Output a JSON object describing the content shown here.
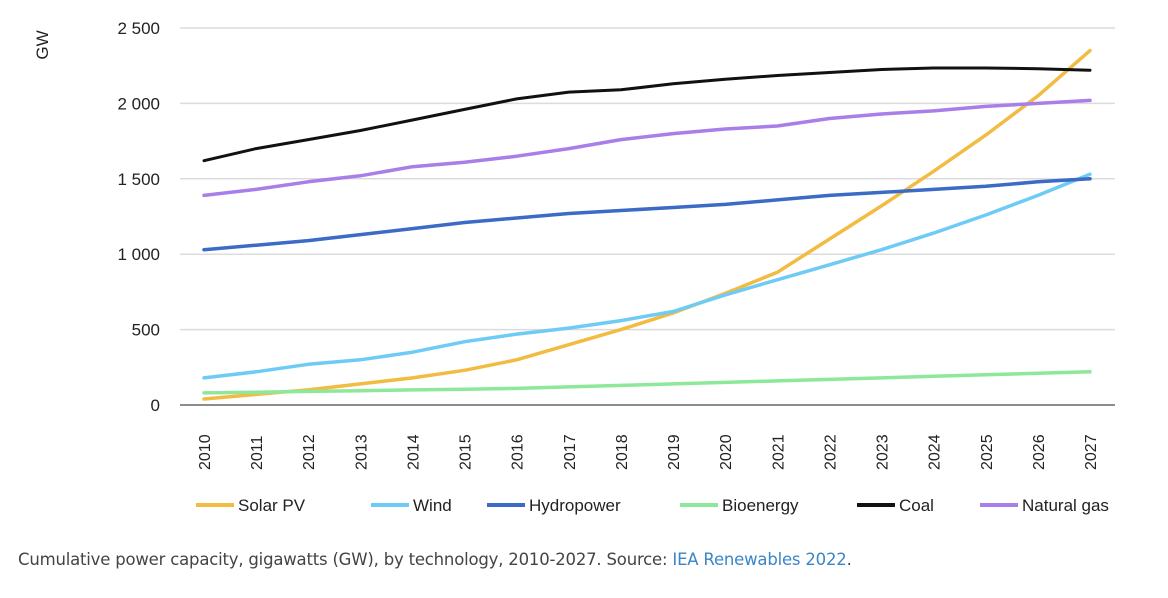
{
  "chart_data": {
    "type": "line",
    "title": "",
    "ylabel": "GW",
    "xlabel": "",
    "ylim": [
      0,
      2500
    ],
    "yticks": [
      0,
      500,
      1000,
      1500,
      2000,
      2500
    ],
    "ytick_labels": [
      "0",
      "500",
      "1 000",
      "1 500",
      "2 000",
      "2 500"
    ],
    "grid": true,
    "legend_placement": "bottom",
    "x": [
      "2010",
      "2011",
      "2012",
      "2013",
      "2014",
      "2015",
      "2016",
      "2017",
      "2018",
      "2019",
      "2020",
      "2021",
      "2022",
      "2023",
      "2024",
      "2025",
      "2026",
      "2027"
    ],
    "series": [
      {
        "name": "Solar PV",
        "color": "#f2bb41",
        "values": [
          40,
          70,
          100,
          140,
          180,
          230,
          300,
          400,
          500,
          610,
          740,
          880,
          1100,
          1320,
          1550,
          1790,
          2050,
          2350
        ]
      },
      {
        "name": "Wind",
        "color": "#6ecbf5",
        "values": [
          180,
          220,
          270,
          300,
          350,
          420,
          470,
          510,
          560,
          620,
          730,
          830,
          930,
          1030,
          1140,
          1260,
          1390,
          1530
        ]
      },
      {
        "name": "Hydropower",
        "color": "#3b6bc6",
        "values": [
          1030,
          1060,
          1090,
          1130,
          1170,
          1210,
          1240,
          1270,
          1290,
          1310,
          1330,
          1360,
          1390,
          1410,
          1430,
          1450,
          1480,
          1500
        ]
      },
      {
        "name": "Bioenergy",
        "color": "#8ee89a",
        "values": [
          80,
          85,
          90,
          95,
          100,
          105,
          110,
          120,
          130,
          140,
          150,
          160,
          170,
          180,
          190,
          200,
          210,
          220
        ]
      },
      {
        "name": "Coal",
        "color": "#111111",
        "values": [
          1620,
          1700,
          1760,
          1820,
          1890,
          1960,
          2030,
          2075,
          2090,
          2130,
          2160,
          2185,
          2205,
          2225,
          2235,
          2235,
          2230,
          2220
        ]
      },
      {
        "name": "Natural gas",
        "color": "#a87ee8",
        "values": [
          1390,
          1430,
          1480,
          1520,
          1580,
          1610,
          1650,
          1700,
          1760,
          1800,
          1830,
          1850,
          1900,
          1930,
          1950,
          1980,
          2000,
          2020
        ]
      }
    ]
  },
  "caption": {
    "text": "Cumulative power capacity, gigawatts (GW), by technology, 2010-2027. Source: ",
    "link": "IEA Renewables 2022",
    "end": "."
  }
}
